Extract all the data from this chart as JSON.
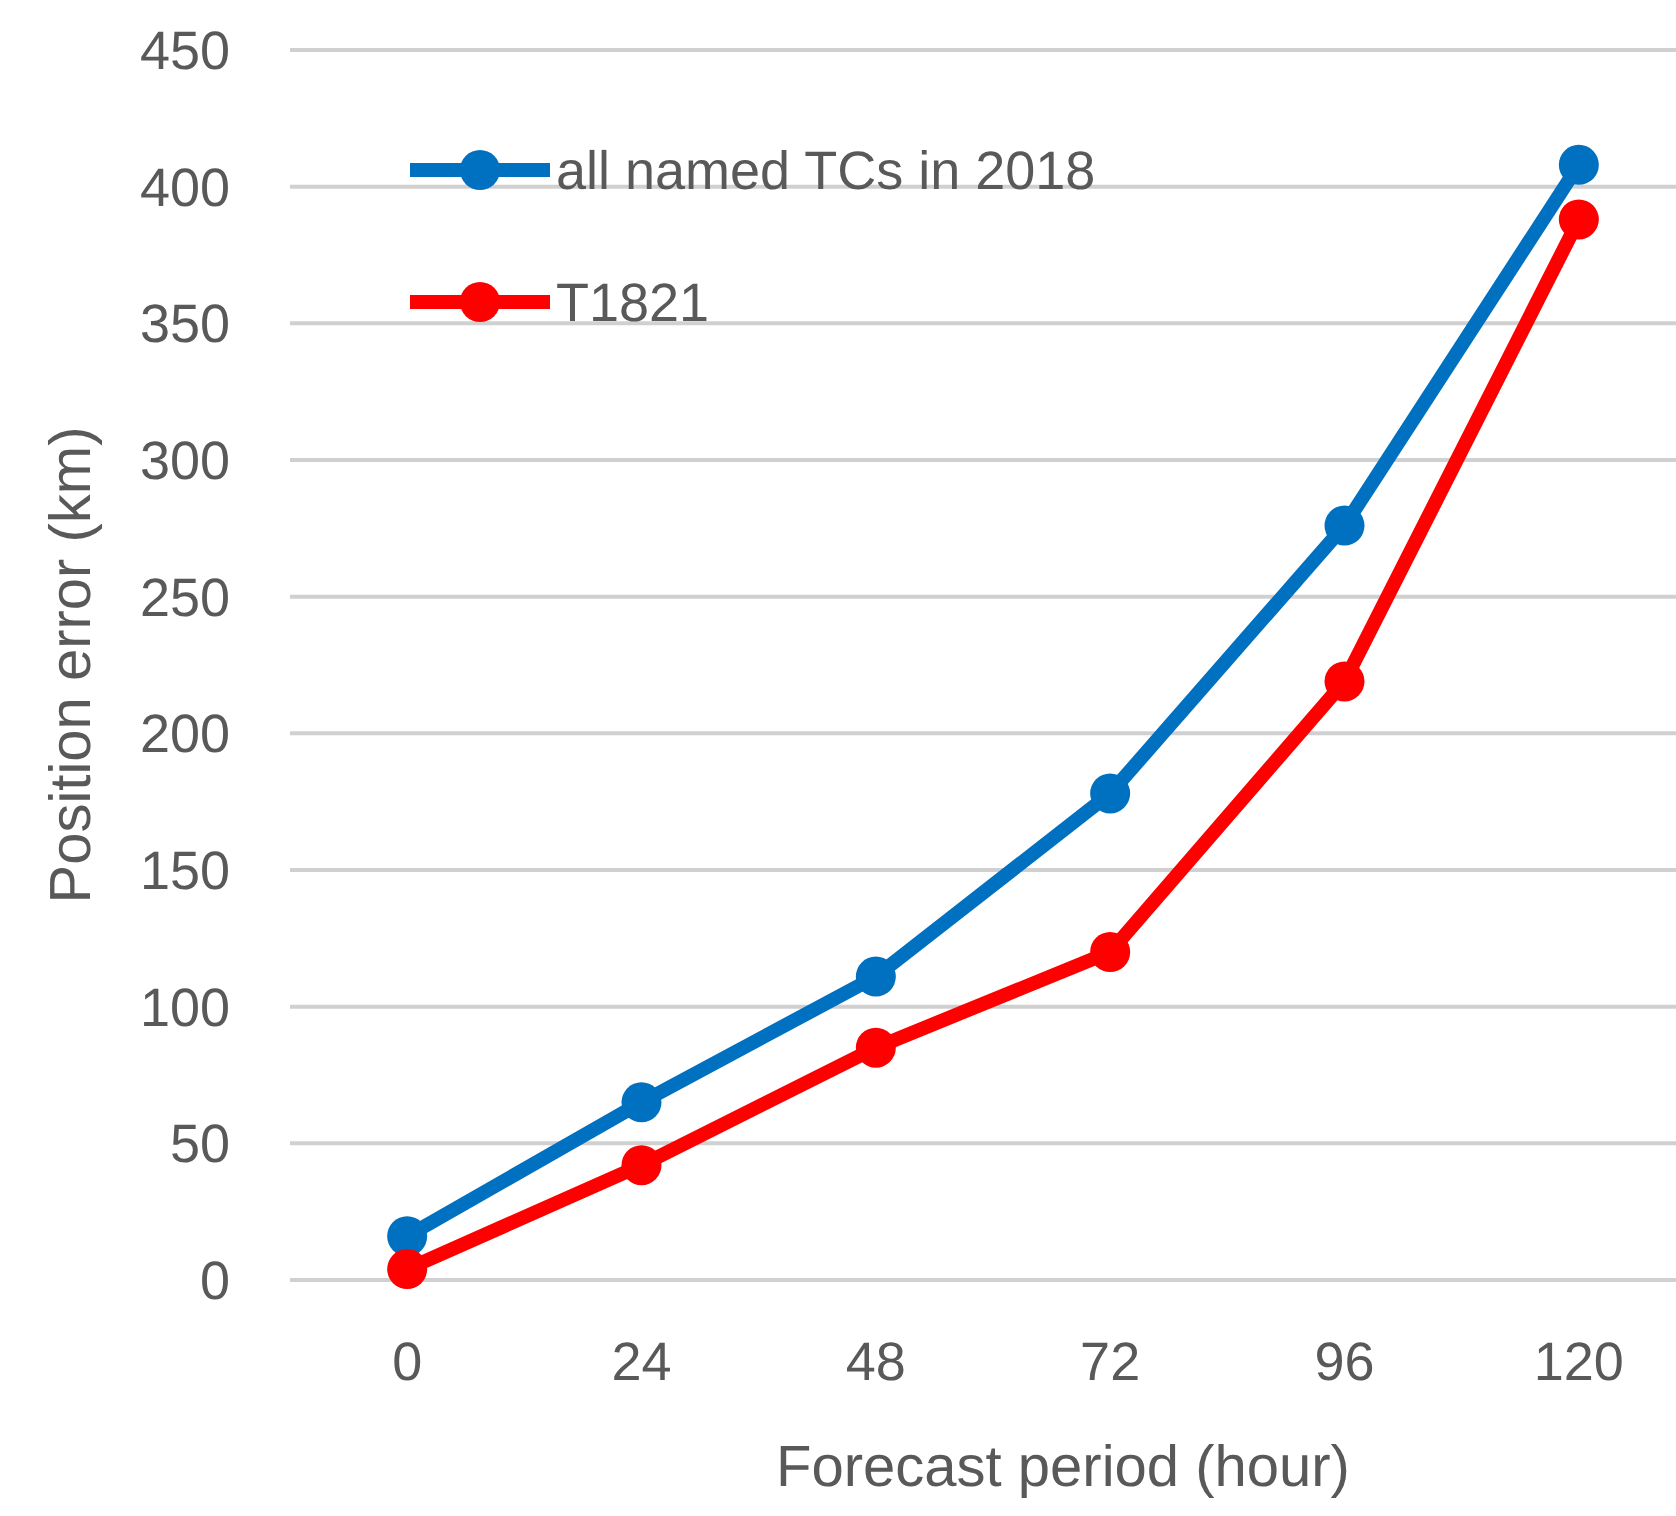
{
  "chart_data": {
    "type": "line",
    "xlabel": "Forecast period (hour)",
    "ylabel": "Position error (km)",
    "categories": [
      "0",
      "24",
      "48",
      "72",
      "96",
      "120"
    ],
    "series": [
      {
        "name": "all named TCs in 2018",
        "color": "#0070c0",
        "values": [
          16,
          65,
          111,
          178,
          276,
          408
        ]
      },
      {
        "name": "T1821",
        "color": "#ff0000",
        "values": [
          4,
          42,
          85,
          120,
          219,
          388
        ]
      }
    ],
    "ylim": [
      0,
      450
    ],
    "yticks": [
      0,
      50,
      100,
      150,
      200,
      250,
      300,
      350,
      400,
      450
    ],
    "grid": "y",
    "legend": "top left",
    "marker": "circle",
    "line_style": "solid"
  }
}
